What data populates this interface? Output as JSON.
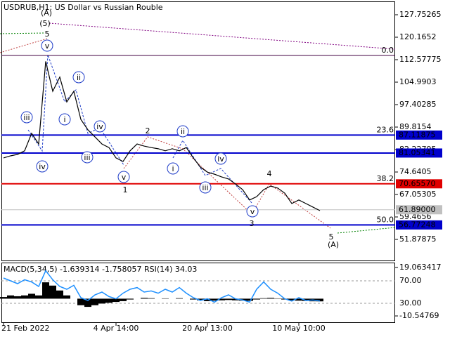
{
  "chart_data": [
    {
      "type": "line",
      "title": "USDRUB,H1:  US Dollar vs Russian Rouble",
      "color": "#000000",
      "categories": [
        "21 Feb 2022",
        null,
        null,
        null,
        null,
        null,
        null,
        null,
        null,
        null,
        null,
        null,
        null,
        null,
        null,
        null,
        "4 Apr 14:00",
        null,
        null,
        null,
        null,
        null,
        null,
        null,
        null,
        null,
        null,
        null,
        null,
        "20 Apr 13:00",
        null,
        null,
        null,
        null,
        null,
        null,
        null,
        null,
        null,
        null,
        null,
        null,
        "10 May 10:00",
        null,
        null,
        null
      ],
      "values": [
        79.4,
        80.1,
        80.6,
        81.8,
        87.7,
        84.1,
        112,
        101.9,
        106.7,
        98.3,
        101.9,
        92.4,
        88.9,
        86.5,
        84.1,
        82.9,
        79.4,
        78.2,
        81.8,
        84.1,
        83.4,
        82.9,
        82.5,
        81.8,
        82.5,
        81.8,
        82.9,
        79.4,
        76.3,
        74.6,
        73.9,
        73.0,
        72.3,
        70.6,
        68.7,
        65.2,
        66.3,
        68.7,
        69.9,
        69.2,
        67.5,
        64.0,
        65.2,
        64.0,
        62.8,
        61.6
      ],
      "ylim": [
        44.53,
        132.73
      ],
      "yticks": [
        127.75265,
        120.1652,
        112.57775,
        104.9903,
        97.40285,
        89.8154,
        82.22795,
        74.6405,
        67.05305,
        59.4656,
        51.87875
      ],
      "levels": [
        {
          "value": 113.99,
          "color": "#400040",
          "fib": "0.0"
        },
        {
          "value": 87.11875,
          "label": "87.11875",
          "color": "#0000cc",
          "fib": "23.6"
        },
        {
          "value": 81.05341,
          "label": "81.05341",
          "color": "#0000cc"
        },
        {
          "value": 70.6557,
          "label": "70.65570",
          "color": "#e00000",
          "fib": "38.2"
        },
        {
          "value": 61.89,
          "label": "61.89000",
          "color": "#c0c0c0"
        },
        {
          "value": 56.77248,
          "label": "56.77248",
          "color": "#0000cc",
          "fib": "50.0"
        }
      ],
      "annotations": [
        {
          "text": "(A)",
          "color": "#800080"
        },
        {
          "text": "(5)",
          "color": "#008000"
        },
        {
          "text": "5",
          "color": "#a52a2a"
        },
        {
          "text": "v",
          "color": "#1e3cc8",
          "circle": true
        },
        {
          "text": "iii",
          "color": "#1e3cc8",
          "circle": true
        },
        {
          "text": "iv",
          "color": "#1e3cc8",
          "circle": true
        },
        {
          "text": "ii",
          "color": "#1e3cc8",
          "circle": true
        },
        {
          "text": "i",
          "color": "#1e3cc8",
          "circle": true
        },
        {
          "text": "iv",
          "color": "#1e3cc8",
          "circle": true
        },
        {
          "text": "iii",
          "color": "#1e3cc8",
          "circle": true
        },
        {
          "text": "v",
          "color": "#1e3cc8",
          "circle": true
        },
        {
          "text": "1",
          "color": "#a52a2a"
        },
        {
          "text": "2",
          "color": "#a52a2a"
        },
        {
          "text": "ii",
          "color": "#1e3cc8",
          "circle": true
        },
        {
          "text": "i",
          "color": "#1e3cc8",
          "circle": true
        },
        {
          "text": "iv",
          "color": "#1e3cc8",
          "circle": true
        },
        {
          "text": "iii",
          "color": "#1e3cc8",
          "circle": true
        },
        {
          "text": "v",
          "color": "#1e3cc8",
          "circle": true
        },
        {
          "text": "3",
          "color": "#a52a2a"
        },
        {
          "text": "4",
          "color": "#a52a2a"
        },
        {
          "text": "5",
          "color": "#a52a2a"
        },
        {
          "text": "(A)",
          "color": "#008000"
        }
      ]
    },
    {
      "type": "indicator",
      "title": "MACD(5,34,5) -1.639314 -1.758057 RSI(14) 34.03",
      "ylim": [
        -14.84,
        21.64
      ],
      "yticks": [
        19.063417,
        -10.54769
      ],
      "y2lim": [
        -5,
        101.25
      ],
      "y2ticks": [
        {
          "value": 70,
          "label": "70.00"
        },
        {
          "value": 30,
          "label": "30.00"
        }
      ],
      "series": [
        {
          "name": "MACD",
          "color": "#000000",
          "values": [
            1,
            2,
            1.5,
            2,
            3,
            2,
            10,
            8,
            5,
            2,
            0,
            -4,
            -5,
            -4,
            -3,
            -2.5,
            -2,
            -1.5,
            -0.5,
            0,
            0.5,
            0.3,
            0,
            0.2,
            0,
            0.3,
            0,
            -0.5,
            -1,
            -1.5,
            -1.2,
            -1,
            -0.8,
            -1,
            -1.2,
            -1.3,
            -0.5,
            0.3,
            0.5,
            0.2,
            -0.5,
            -1,
            -1.2,
            -1.4,
            -1.6,
            -1.64
          ]
        },
        {
          "name": "RSI",
          "color": "#1e90ff",
          "axis": "y2",
          "values": [
            75,
            70,
            65,
            72,
            68,
            60,
            88,
            72,
            60,
            55,
            62,
            40,
            35,
            45,
            50,
            42,
            38,
            48,
            55,
            58,
            50,
            52,
            48,
            55,
            50,
            58,
            48,
            40,
            35,
            38,
            32,
            40,
            45,
            38,
            36,
            32,
            55,
            68,
            55,
            48,
            38,
            34,
            40,
            35,
            36,
            34
          ]
        }
      ]
    }
  ]
}
